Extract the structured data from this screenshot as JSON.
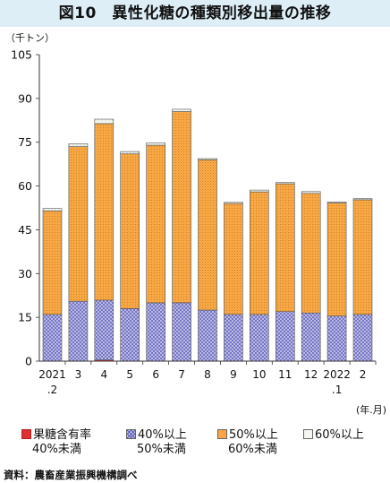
{
  "title": "図10　異性化糖の種類別移出量の推移",
  "unit_label": "（千トン）",
  "x_unit_label": "(年.月)",
  "source": "資料：農畜産業振興機構調べ",
  "chart_data": {
    "type": "bar",
    "stacked": true,
    "categories": [
      "2021\n.2",
      "3",
      "4",
      "5",
      "6",
      "7",
      "8",
      "9",
      "10",
      "11",
      "12",
      "2022\n.1",
      "2"
    ],
    "ylim": [
      0,
      105
    ],
    "yticks": [
      0,
      15,
      30,
      45,
      60,
      75,
      90,
      105
    ],
    "grid": false,
    "legend_position": "bottom",
    "series": [
      {
        "name": "果糖含有率 40%未満",
        "color": "#e03030",
        "pattern": "solid",
        "values": [
          0,
          0,
          0.4,
          0,
          0,
          0,
          0,
          0,
          0,
          0,
          0,
          0,
          0
        ]
      },
      {
        "name": "40%以上 50%未満",
        "color": "#9a9ad8",
        "pattern": "crosshatch",
        "values": [
          16,
          20.5,
          20.5,
          18,
          20,
          20,
          17.5,
          16,
          16,
          17,
          16.5,
          15.5,
          16
        ]
      },
      {
        "name": "50%以上 60%未満",
        "color": "#f5a43c",
        "pattern": "dots",
        "values": [
          35.5,
          53,
          60.5,
          53,
          54,
          65.5,
          51.5,
          38,
          42,
          43.8,
          41,
          38.7,
          39.3
        ]
      },
      {
        "name": "60%以上",
        "color": "#eef2ea",
        "pattern": "sparse",
        "values": [
          0.8,
          1,
          1.5,
          0.8,
          0.8,
          0.8,
          0.4,
          0.4,
          0.6,
          0.4,
          0.6,
          0.3,
          0.4
        ]
      }
    ]
  }
}
